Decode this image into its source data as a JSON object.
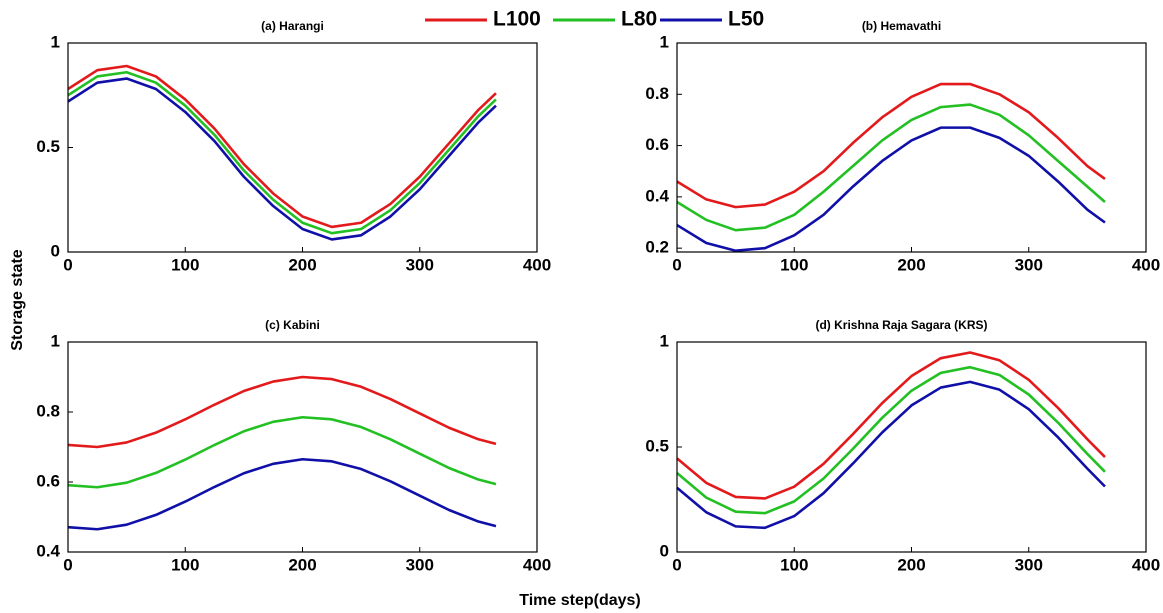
{
  "figure": {
    "xlabel": "Time step(days)",
    "ylabel": "Storage state"
  },
  "chart_data": [
    {
      "type": "line",
      "title": "(a) Harangi",
      "x": [
        0,
        25,
        50,
        75,
        100,
        125,
        150,
        175,
        200,
        225,
        250,
        275,
        300,
        325,
        350,
        365
      ],
      "series": [
        {
          "name": "L100",
          "color": "#e31a1c",
          "values": [
            0.78,
            0.87,
            0.89,
            0.84,
            0.73,
            0.59,
            0.42,
            0.28,
            0.17,
            0.12,
            0.14,
            0.23,
            0.36,
            0.52,
            0.68,
            0.76
          ]
        },
        {
          "name": "L80",
          "color": "#22c022",
          "values": [
            0.75,
            0.84,
            0.86,
            0.81,
            0.7,
            0.56,
            0.39,
            0.25,
            0.14,
            0.09,
            0.11,
            0.2,
            0.33,
            0.49,
            0.65,
            0.73
          ]
        },
        {
          "name": "L50",
          "color": "#1010a8",
          "values": [
            0.72,
            0.81,
            0.83,
            0.78,
            0.67,
            0.53,
            0.36,
            0.22,
            0.11,
            0.06,
            0.08,
            0.17,
            0.3,
            0.46,
            0.62,
            0.7
          ]
        }
      ],
      "xlim": [
        0,
        400
      ],
      "xticks": [
        0,
        100,
        200,
        300,
        400
      ],
      "ylim": [
        0,
        1
      ],
      "yticks": [
        0,
        0.5,
        1
      ]
    },
    {
      "type": "line",
      "title": "(b) Hemavathi",
      "x": [
        0,
        25,
        50,
        75,
        100,
        125,
        150,
        175,
        200,
        225,
        250,
        275,
        300,
        325,
        350,
        365
      ],
      "series": [
        {
          "name": "L100",
          "color": "#e31a1c",
          "values": [
            0.46,
            0.39,
            0.36,
            0.37,
            0.42,
            0.5,
            0.61,
            0.71,
            0.79,
            0.84,
            0.84,
            0.8,
            0.73,
            0.63,
            0.52,
            0.47
          ]
        },
        {
          "name": "L80",
          "color": "#22c022",
          "values": [
            0.38,
            0.31,
            0.27,
            0.28,
            0.33,
            0.42,
            0.52,
            0.62,
            0.7,
            0.75,
            0.76,
            0.72,
            0.64,
            0.54,
            0.44,
            0.38
          ]
        },
        {
          "name": "L50",
          "color": "#1010a8",
          "values": [
            0.29,
            0.22,
            0.19,
            0.2,
            0.25,
            0.33,
            0.44,
            0.54,
            0.62,
            0.67,
            0.67,
            0.63,
            0.56,
            0.46,
            0.35,
            0.3
          ]
        }
      ],
      "xlim": [
        0,
        400
      ],
      "xticks": [
        0,
        100,
        200,
        300,
        400
      ],
      "ylim": [
        0.185,
        1
      ],
      "yticks": [
        0.2,
        0.4,
        0.6,
        0.8,
        1
      ]
    },
    {
      "type": "line",
      "title": "(c) Kabini",
      "x": [
        0,
        25,
        50,
        75,
        100,
        125,
        150,
        175,
        200,
        225,
        250,
        275,
        300,
        325,
        350,
        365
      ],
      "series": [
        {
          "name": "L100",
          "color": "#e31a1c",
          "values": [
            0.706,
            0.7,
            0.713,
            0.741,
            0.779,
            0.821,
            0.86,
            0.887,
            0.9,
            0.894,
            0.872,
            0.837,
            0.796,
            0.755,
            0.722,
            0.709
          ]
        },
        {
          "name": "L80",
          "color": "#22c022",
          "values": [
            0.591,
            0.585,
            0.598,
            0.626,
            0.664,
            0.706,
            0.745,
            0.772,
            0.785,
            0.779,
            0.757,
            0.722,
            0.681,
            0.64,
            0.607,
            0.594
          ]
        },
        {
          "name": "L50",
          "color": "#1010a8",
          "values": [
            0.471,
            0.465,
            0.478,
            0.506,
            0.544,
            0.586,
            0.625,
            0.652,
            0.665,
            0.659,
            0.637,
            0.602,
            0.561,
            0.52,
            0.487,
            0.474
          ]
        }
      ],
      "xlim": [
        0,
        400
      ],
      "xticks": [
        0,
        100,
        200,
        300,
        400
      ],
      "ylim": [
        0.4,
        1
      ],
      "yticks": [
        0.4,
        0.6,
        0.8,
        1
      ]
    },
    {
      "type": "line",
      "title": "(d) Krishna Raja Sagara (KRS)",
      "x": [
        0,
        25,
        50,
        75,
        100,
        125,
        150,
        175,
        200,
        225,
        250,
        275,
        300,
        325,
        350,
        365
      ],
      "series": [
        {
          "name": "L100",
          "color": "#e31a1c",
          "values": [
            0.446,
            0.329,
            0.262,
            0.255,
            0.311,
            0.42,
            0.561,
            0.709,
            0.838,
            0.923,
            0.95,
            0.913,
            0.82,
            0.686,
            0.537,
            0.452
          ]
        },
        {
          "name": "L80",
          "color": "#22c022",
          "values": [
            0.376,
            0.259,
            0.192,
            0.185,
            0.241,
            0.35,
            0.491,
            0.639,
            0.768,
            0.853,
            0.88,
            0.843,
            0.75,
            0.616,
            0.467,
            0.382
          ]
        },
        {
          "name": "L50",
          "color": "#1010a8",
          "values": [
            0.306,
            0.189,
            0.122,
            0.115,
            0.171,
            0.28,
            0.421,
            0.569,
            0.698,
            0.783,
            0.81,
            0.773,
            0.68,
            0.546,
            0.397,
            0.312
          ]
        }
      ],
      "xlim": [
        0,
        400
      ],
      "xticks": [
        0,
        100,
        200,
        300,
        400
      ],
      "ylim": [
        0,
        1
      ],
      "yticks": [
        0,
        0.5,
        1
      ]
    }
  ]
}
